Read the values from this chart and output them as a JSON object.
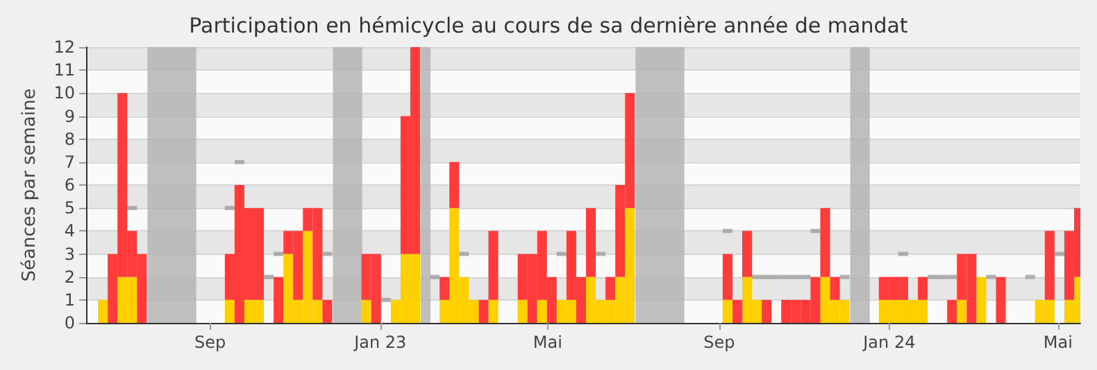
{
  "chart_data": {
    "type": "bar",
    "title": "Participation en hémicycle au cours de sa dernière année de mandat",
    "ylabel": "Séances par semaine",
    "x": [
      "2022-06-16",
      "2022-06-23",
      "2022-06-30",
      "2022-07-07",
      "2022-07-14",
      "2022-07-21",
      "2022-07-28",
      "2022-08-04",
      "2022-08-11",
      "2022-08-18",
      "2022-08-25",
      "2022-09-01",
      "2022-09-08",
      "2022-09-15",
      "2022-09-22",
      "2022-09-29",
      "2022-10-06",
      "2022-10-13",
      "2022-10-20",
      "2022-10-27",
      "2022-11-03",
      "2022-11-10",
      "2022-11-17",
      "2022-11-24",
      "2022-12-01",
      "2022-12-08",
      "2022-12-15",
      "2022-12-22",
      "2022-12-29",
      "2023-01-05",
      "2023-01-12",
      "2023-01-19",
      "2023-01-26",
      "2023-02-02",
      "2023-02-09",
      "2023-02-16",
      "2023-02-23",
      "2023-03-02",
      "2023-03-09",
      "2023-03-16",
      "2023-03-23",
      "2023-03-30",
      "2023-04-06",
      "2023-04-13",
      "2023-04-20",
      "2023-04-27",
      "2023-05-04",
      "2023-05-11",
      "2023-05-18",
      "2023-05-25",
      "2023-06-01",
      "2023-06-08",
      "2023-06-15",
      "2023-06-22",
      "2023-06-29",
      "2023-07-06",
      "2023-07-13",
      "2023-07-20",
      "2023-07-27",
      "2023-08-03",
      "2023-08-10",
      "2023-08-17",
      "2023-08-24",
      "2023-08-31",
      "2023-09-07",
      "2023-09-14",
      "2023-09-21",
      "2023-09-28",
      "2023-10-05",
      "2023-10-12",
      "2023-10-19",
      "2023-10-26",
      "2023-11-02",
      "2023-11-09",
      "2023-11-16",
      "2023-11-23",
      "2023-11-30",
      "2023-12-07",
      "2023-12-14",
      "2023-12-21",
      "2023-12-28",
      "2024-01-04",
      "2024-01-11",
      "2024-01-18",
      "2024-01-25",
      "2024-02-01",
      "2024-02-08",
      "2024-02-15",
      "2024-02-22",
      "2024-02-29",
      "2024-03-07",
      "2024-03-14",
      "2024-03-21",
      "2024-03-28",
      "2024-04-04",
      "2024-04-11",
      "2024-04-18",
      "2024-04-25",
      "2024-05-02",
      "2024-05-09",
      "2024-05-16"
    ],
    "series": [
      {
        "type": "scatter",
        "color": "#9e9e9e",
        "values": [
          null,
          null,
          null,
          5,
          null,
          null,
          null,
          null,
          null,
          null,
          null,
          null,
          null,
          5,
          7,
          null,
          null,
          2,
          3,
          null,
          null,
          null,
          null,
          3,
          null,
          null,
          null,
          null,
          null,
          1,
          null,
          null,
          null,
          null,
          2,
          null,
          null,
          3,
          null,
          null,
          null,
          null,
          null,
          null,
          null,
          null,
          null,
          3,
          null,
          null,
          null,
          3,
          null,
          null,
          null,
          null,
          null,
          null,
          null,
          null,
          null,
          null,
          null,
          null,
          4,
          null,
          null,
          2,
          2,
          2,
          2,
          2,
          2,
          4,
          null,
          null,
          2,
          null,
          null,
          null,
          null,
          null,
          3,
          null,
          null,
          2,
          2,
          2,
          null,
          null,
          null,
          2,
          null,
          null,
          null,
          2,
          null,
          null,
          3,
          null,
          null
        ]
      },
      {
        "color": "#ffd000",
        "values": [
          1,
          0,
          2,
          2,
          0,
          null,
          null,
          null,
          null,
          null,
          0,
          0,
          0,
          1,
          0,
          1,
          1,
          0,
          0,
          3,
          1,
          4,
          1,
          0,
          null,
          null,
          null,
          1,
          0,
          0,
          1,
          3,
          3,
          null,
          0,
          1,
          5,
          2,
          1,
          0,
          1,
          0,
          0,
          1,
          0,
          1,
          0,
          1,
          1,
          0,
          2,
          1,
          1,
          2,
          5,
          null,
          null,
          null,
          null,
          null,
          0,
          0,
          0,
          0,
          1,
          0,
          2,
          1,
          0,
          0,
          0,
          0,
          0,
          0,
          2,
          1,
          1,
          null,
          null,
          0,
          1,
          1,
          1,
          1,
          1,
          0,
          0,
          0,
          1,
          0,
          2,
          0,
          0,
          0,
          0,
          0,
          1,
          1,
          0,
          1,
          2
        ]
      },
      {
        "color": "#ff3b3b",
        "values": [
          0,
          3,
          8,
          2,
          3,
          null,
          null,
          null,
          null,
          null,
          0,
          0,
          0,
          2,
          6,
          4,
          4,
          0,
          2,
          1,
          3,
          1,
          4,
          1,
          null,
          null,
          null,
          2,
          3,
          0,
          0,
          6,
          9,
          null,
          0,
          1,
          2,
          0,
          0,
          1,
          3,
          0,
          0,
          2,
          3,
          3,
          2,
          0,
          3,
          2,
          3,
          0,
          1,
          4,
          5,
          null,
          null,
          null,
          null,
          null,
          0,
          0,
          0,
          0,
          2,
          1,
          2,
          0,
          1,
          0,
          1,
          1,
          1,
          2,
          3,
          1,
          0,
          null,
          null,
          0,
          1,
          1,
          1,
          0,
          1,
          0,
          0,
          1,
          2,
          3,
          0,
          0,
          2,
          0,
          0,
          0,
          0,
          3,
          0,
          3,
          3
        ]
      }
    ],
    "stacked": true,
    "xlim": [
      "2022-06-04",
      "2024-05-17"
    ],
    "xticks": [
      {
        "value": "2022-09-01",
        "label": "Sep"
      },
      {
        "value": "2023-01-01",
        "label": "Jan 23"
      },
      {
        "value": "2023-05-01",
        "label": "Mai"
      },
      {
        "value": "2023-09-01",
        "label": "Sep"
      },
      {
        "value": "2024-01-01",
        "label": "Jan 24"
      },
      {
        "value": "2024-05-01",
        "label": "Mai"
      }
    ],
    "ylim": [
      0,
      12
    ],
    "yticks": [
      0,
      1,
      2,
      3,
      4,
      5,
      6,
      7,
      8,
      9,
      10,
      11,
      12
    ],
    "grid": "y",
    "bands": [
      {
        "axis": "x",
        "from": "2022-07-18",
        "to": "2022-08-22",
        "color": "#b4b4b4"
      },
      {
        "axis": "x",
        "from": "2022-11-28",
        "to": "2022-12-19",
        "color": "#b4b4b4"
      },
      {
        "axis": "x",
        "from": "2023-01-30",
        "to": "2023-02-06",
        "color": "#b4b4b4"
      },
      {
        "axis": "x",
        "from": "2023-07-03",
        "to": "2023-08-07",
        "color": "#b4b4b4"
      },
      {
        "axis": "x",
        "from": "2023-12-04",
        "to": "2023-12-18",
        "color": "#b4b4b4"
      }
    ]
  }
}
